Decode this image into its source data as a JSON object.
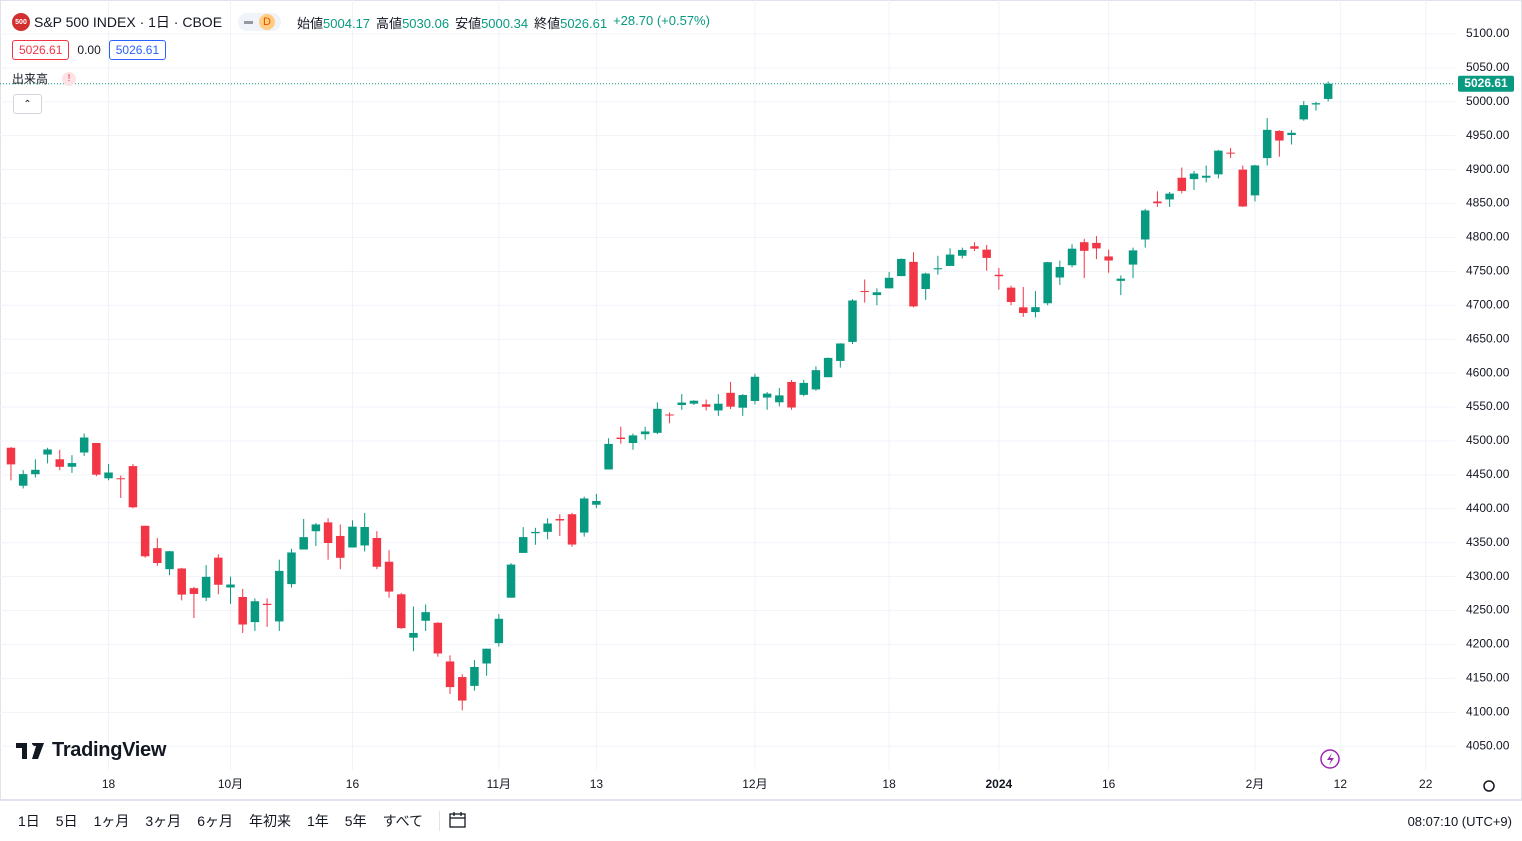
{
  "chart_data": {
    "type": "candlestick",
    "title": "S&P 500 INDEX · 1日 · CBOE",
    "symbol_badge": "500",
    "interval_badge": "D",
    "ohlc_labels": {
      "open": "始値",
      "high": "高値",
      "low": "安値",
      "close": "終値"
    },
    "change": "+28.70 (+0.57%)",
    "spread": "0.00",
    "volume_label": "出来高",
    "volume_alert": "!",
    "logo": "TradingView",
    "up_color": "#089981",
    "down_color": "#f23645",
    "grid": true,
    "categories": [
      "2023-09-06",
      "2023-09-07",
      "2023-09-08",
      "2023-09-11",
      "2023-09-12",
      "2023-09-13",
      "2023-09-14",
      "2023-09-15",
      "2023-09-18",
      "2023-09-19",
      "2023-09-20",
      "2023-09-21",
      "2023-09-22",
      "2023-09-25",
      "2023-09-26",
      "2023-09-27",
      "2023-09-28",
      "2023-09-29",
      "2023-10-02",
      "2023-10-03",
      "2023-10-04",
      "2023-10-05",
      "2023-10-06",
      "2023-10-09",
      "2023-10-10",
      "2023-10-11",
      "2023-10-12",
      "2023-10-13",
      "2023-10-16",
      "2023-10-17",
      "2023-10-18",
      "2023-10-19",
      "2023-10-20",
      "2023-10-23",
      "2023-10-24",
      "2023-10-25",
      "2023-10-26",
      "2023-10-27",
      "2023-10-30",
      "2023-10-31",
      "2023-11-01",
      "2023-11-02",
      "2023-11-03",
      "2023-11-06",
      "2023-11-07",
      "2023-11-08",
      "2023-11-09",
      "2023-11-10",
      "2023-11-13",
      "2023-11-14",
      "2023-11-15",
      "2023-11-16",
      "2023-11-17",
      "2023-11-20",
      "2023-11-21",
      "2023-11-22",
      "2023-11-24",
      "2023-11-27",
      "2023-11-28",
      "2023-11-29",
      "2023-11-30",
      "2023-12-01",
      "2023-12-04",
      "2023-12-05",
      "2023-12-06",
      "2023-12-07",
      "2023-12-08",
      "2023-12-11",
      "2023-12-12",
      "2023-12-13",
      "2023-12-14",
      "2023-12-15",
      "2023-12-18",
      "2023-12-19",
      "2023-12-20",
      "2023-12-21",
      "2023-12-22",
      "2023-12-26",
      "2023-12-27",
      "2023-12-28",
      "2023-12-29",
      "2024-01-02",
      "2024-01-03",
      "2024-01-04",
      "2024-01-05",
      "2024-01-08",
      "2024-01-09",
      "2024-01-10",
      "2024-01-11",
      "2024-01-12",
      "2024-01-16",
      "2024-01-17",
      "2024-01-18",
      "2024-01-19",
      "2024-01-22",
      "2024-01-23",
      "2024-01-24",
      "2024-01-25",
      "2024-01-26",
      "2024-01-29",
      "2024-01-30",
      "2024-01-31",
      "2024-02-01",
      "2024-02-02",
      "2024-02-05",
      "2024-02-06",
      "2024-02-07",
      "2024-02-08",
      "2024-02-09"
    ],
    "open": [
      4490,
      4434,
      4451,
      4480,
      4473,
      4462,
      4483,
      4497,
      4445,
      4445,
      4463,
      4375,
      4342,
      4311,
      4312,
      4283,
      4269,
      4328,
      4284,
      4270,
      4233,
      4260,
      4234,
      4289,
      4340,
      4367,
      4380,
      4360,
      4343,
      4346,
      4357,
      4322,
      4274,
      4210,
      4235,
      4232,
      4175,
      4152,
      4139,
      4172,
      4202,
      4269,
      4335,
      4364,
      4366,
      4385,
      4392,
      4365,
      4406,
      4458,
      4505,
      4497,
      4510,
      4512,
      4539,
      4553,
      4555,
      4554,
      4545,
      4571,
      4549,
      4559,
      4564,
      4557,
      4587,
      4568,
      4576,
      4594,
      4618,
      4646,
      4721,
      4715,
      4725,
      4743,
      4764,
      4724,
      4753,
      4758,
      4773,
      4787,
      4782,
      4745,
      4726,
      4697,
      4690,
      4703,
      4741,
      4759,
      4793,
      4792,
      4772,
      4736,
      4760,
      4797,
      4853,
      4856,
      4888,
      4886,
      4888,
      4893,
      4925,
      4900,
      4862,
      4917,
      4957,
      4951,
      4974,
      4996,
      5004.17
    ],
    "high": [
      4491,
      4457,
      4473,
      4490,
      4487,
      4479,
      4511,
      4497,
      4466,
      4449,
      4466,
      4375,
      4357,
      4338,
      4313,
      4285,
      4317,
      4333,
      4300,
      4282,
      4268,
      4268,
      4325,
      4341,
      4385,
      4379,
      4386,
      4377,
      4383,
      4394,
      4367,
      4339,
      4276,
      4256,
      4259,
      4233,
      4184,
      4156,
      4177,
      4194,
      4245,
      4320,
      4373,
      4372,
      4386,
      4392,
      4394,
      4418,
      4422,
      4504,
      4521,
      4511,
      4521,
      4557,
      4542,
      4569,
      4560,
      4561,
      4569,
      4587,
      4569,
      4599,
      4572,
      4578,
      4590,
      4590,
      4610,
      4623,
      4644,
      4709,
      4738,
      4725,
      4749,
      4769,
      4778,
      4748,
      4773,
      4784,
      4785,
      4793,
      4789,
      4755,
      4729,
      4727,
      4721,
      4764,
      4766,
      4790,
      4798,
      4802,
      4782,
      4744,
      4785,
      4842,
      4868,
      4867,
      4903,
      4898,
      4906,
      4929,
      4932,
      4906,
      4907,
      4976,
      4958,
      4958,
      5001,
      5000,
      5030.06
    ],
    "low": [
      4442,
      4430,
      4446,
      4467,
      4457,
      4453,
      4478,
      4448,
      4442,
      4416,
      4401,
      4328,
      4316,
      4302,
      4265,
      4239,
      4264,
      4274,
      4260,
      4217,
      4220,
      4226,
      4220,
      4284,
      4340,
      4345,
      4325,
      4311,
      4343,
      4337,
      4311,
      4269,
      4223,
      4190,
      4220,
      4182,
      4127,
      4103,
      4132,
      4154,
      4197,
      4269,
      4335,
      4347,
      4355,
      4360,
      4344,
      4359,
      4401,
      4458,
      4496,
      4487,
      4502,
      4510,
      4526,
      4546,
      4553,
      4545,
      4537,
      4547,
      4537,
      4554,
      4546,
      4551,
      4546,
      4566,
      4574,
      4594,
      4608,
      4643,
      4704,
      4700,
      4725,
      4743,
      4697,
      4708,
      4745,
      4758,
      4769,
      4780,
      4751,
      4723,
      4700,
      4683,
      4682,
      4700,
      4730,
      4756,
      4740,
      4768,
      4748,
      4715,
      4740,
      4785,
      4845,
      4845,
      4865,
      4870,
      4881,
      4887,
      4917,
      4845,
      4853,
      4906,
      4919,
      4937,
      4972,
      4987,
      5000.34
    ],
    "close": [
      4465.48,
      4451.14,
      4457.49,
      4487.46,
      4461.9,
      4467.44,
      4505.1,
      4450.32,
      4453.53,
      4443.95,
      4402.2,
      4330,
      4320.06,
      4337.44,
      4273.53,
      4274.51,
      4299.7,
      4288.05,
      4288.39,
      4229.45,
      4263.75,
      4258.19,
      4308.5,
      4335.66,
      4358.24,
      4376.95,
      4349.61,
      4327.78,
      4373.63,
      4373.2,
      4314.6,
      4278,
      4224.16,
      4217.04,
      4247.68,
      4186.77,
      4137.23,
      4117.37,
      4166.82,
      4193.8,
      4237.86,
      4317.78,
      4358.34,
      4365.98,
      4378.38,
      4382.78,
      4347.35,
      4415.24,
      4411.55,
      4495.7,
      4502.88,
      4508.24,
      4514.02,
      4547.38,
      4538.19,
      4556.62,
      4559.34,
      4550.43,
      4554.89,
      4550.58,
      4567.8,
      4594.63,
      4569.78,
      4567.18,
      4549.34,
      4585.59,
      4604.37,
      4622.44,
      4643.7,
      4707.09,
      4719.55,
      4719.19,
      4740.56,
      4768.37,
      4698.35,
      4746.75,
      4754.63,
      4774.75,
      4781.58,
      4783.35,
      4769.83,
      4742.83,
      4704.81,
      4688.68,
      4697.24,
      4763.54,
      4756.5,
      4783.45,
      4780.24,
      4783.83,
      4765.98,
      4739.21,
      4780.94,
      4839.81,
      4850.43,
      4864.6,
      4868.55,
      4894.16,
      4890.97,
      4927.93,
      4924.97,
      4845.65,
      4906.19,
      4958.61,
      4942.81,
      4954.23,
      4995.06,
      4997.91,
      5026.61
    ],
    "xlim": [
      -0.9,
      118.4
    ],
    "xticks": [
      {
        "value": 8,
        "label": "18"
      },
      {
        "value": 18,
        "label": "10月"
      },
      {
        "value": 28,
        "label": "16"
      },
      {
        "value": 40,
        "label": "11月"
      },
      {
        "value": 48,
        "label": "13"
      },
      {
        "value": 61,
        "label": "12月"
      },
      {
        "value": 72,
        "label": "18"
      },
      {
        "value": 81,
        "label": "2024"
      },
      {
        "value": 90,
        "label": "16"
      },
      {
        "value": 102,
        "label": "2月"
      },
      {
        "value": 109,
        "label": "12"
      },
      {
        "value": 116,
        "label": "22"
      }
    ],
    "ylim": [
      4015,
      5150
    ],
    "yticks": [
      {
        "value": 4050,
        "label": "4050.00"
      },
      {
        "value": 4100,
        "label": "4100.00"
      },
      {
        "value": 4150,
        "label": "4150.00"
      },
      {
        "value": 4200,
        "label": "4200.00"
      },
      {
        "value": 4250,
        "label": "4250.00"
      },
      {
        "value": 4300,
        "label": "4300.00"
      },
      {
        "value": 4350,
        "label": "4350.00"
      },
      {
        "value": 4400,
        "label": "4400.00"
      },
      {
        "value": 4450,
        "label": "4450.00"
      },
      {
        "value": 4500,
        "label": "4500.00"
      },
      {
        "value": 4550,
        "label": "4550.00"
      },
      {
        "value": 4600,
        "label": "4600.00"
      },
      {
        "value": 4650,
        "label": "4650.00"
      },
      {
        "value": 4700,
        "label": "4700.00"
      },
      {
        "value": 4750,
        "label": "4750.00"
      },
      {
        "value": 4800,
        "label": "4800.00"
      },
      {
        "value": 4850,
        "label": "4850.00"
      },
      {
        "value": 4900,
        "label": "4900.00"
      },
      {
        "value": 4950,
        "label": "4950.00"
      },
      {
        "value": 5000,
        "label": "5000.00"
      },
      {
        "value": 5050,
        "label": "5050.00"
      },
      {
        "value": 5100,
        "label": "5100.00"
      }
    ]
  },
  "toolbar": {
    "ranges": [
      "1日",
      "5日",
      "1ヶ月",
      "3ヶ月",
      "6ヶ月",
      "年初来",
      "1年",
      "5年",
      "すべて"
    ],
    "clock": "08:07:10 (UTC+9)"
  }
}
